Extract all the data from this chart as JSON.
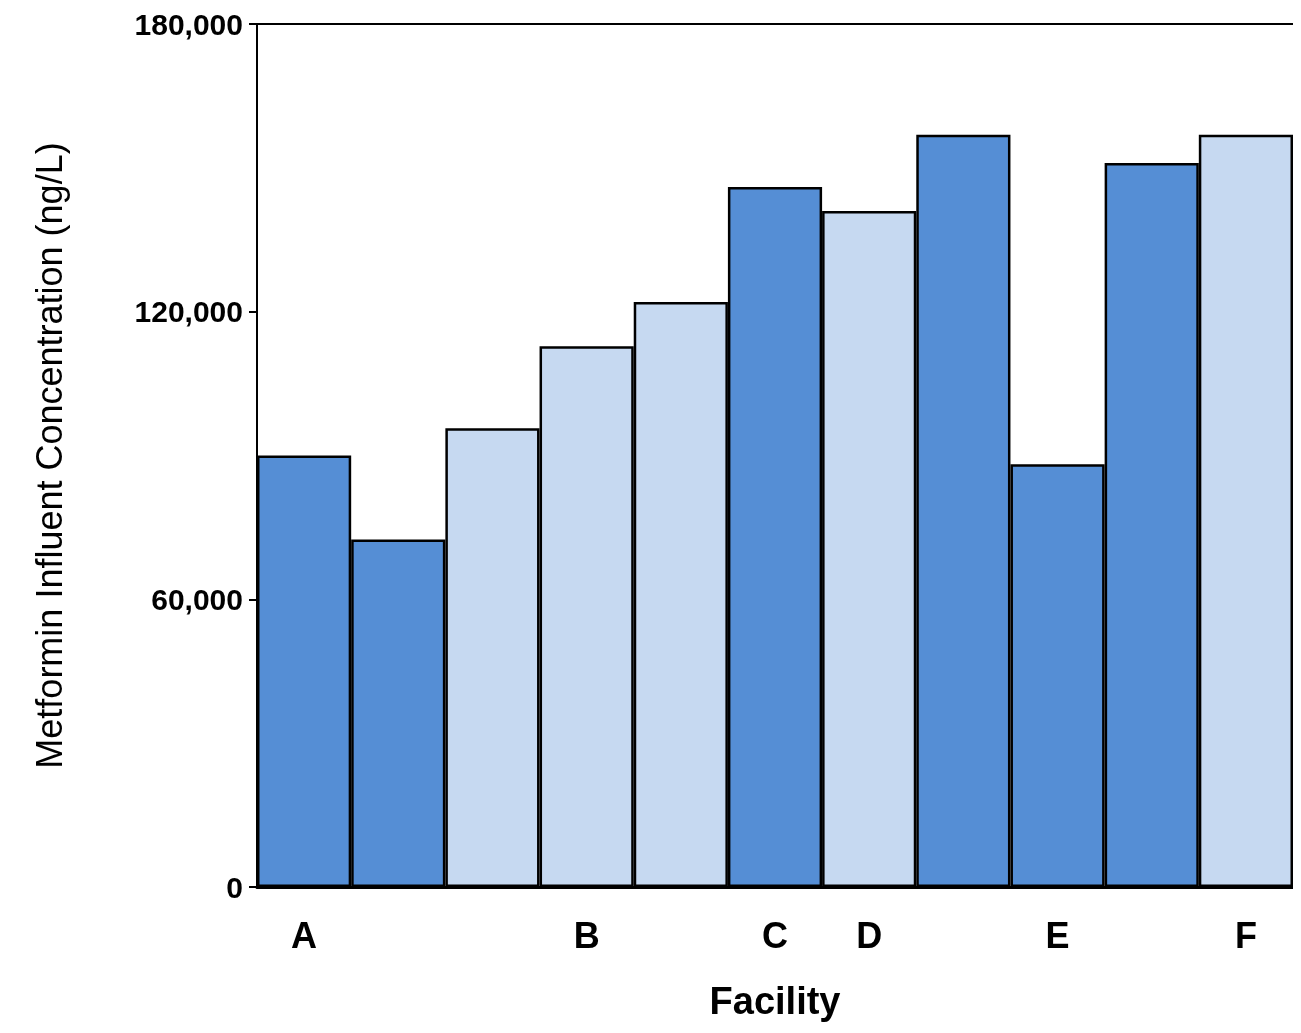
{
  "chart_data": {
    "type": "bar",
    "xlabel": "Facility",
    "ylabel": "Metformin Influent Concentration (ng/L)",
    "categories": [
      "A",
      null,
      null,
      "B",
      null,
      "C",
      "D",
      null,
      "E",
      null,
      "F"
    ],
    "values": [
      90000,
      72500,
      95700,
      112800,
      122000,
      146000,
      141000,
      156900,
      88200,
      151000,
      156900
    ],
    "colors": [
      "#558ed5",
      "#558ed5",
      "#c6d9f1",
      "#c6d9f1",
      "#c6d9f1",
      "#558ed5",
      "#c6d9f1",
      "#558ed5",
      "#558ed5",
      "#558ed5",
      "#c6d9f1"
    ],
    "ylim": [
      0,
      180000
    ],
    "yticks": [
      0,
      {
        "value": 60000,
        "label": "60,000"
      },
      {
        "value": 120000,
        "label": "120,000"
      },
      {
        "value": 180000,
        "label": "180,000"
      }
    ],
    "grid": false
  }
}
